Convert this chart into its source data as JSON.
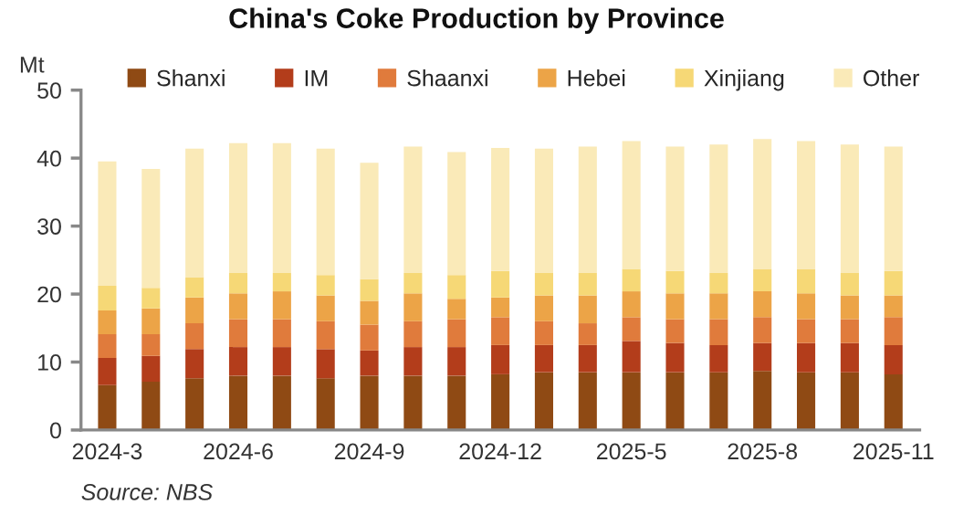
{
  "chart_data": {
    "type": "bar",
    "title": "China's Coke Production by Province",
    "ylabel": "Mt",
    "categories": [
      "2024-3",
      null,
      null,
      "2024-6",
      null,
      null,
      "2024-9",
      null,
      null,
      "2024-12",
      null,
      null,
      "2025-5",
      null,
      null,
      "2025-8",
      null,
      null,
      "2025-11"
    ],
    "stacked": true,
    "legend": "top",
    "grid": false,
    "ylim": [
      0,
      50
    ],
    "yticks": [
      0,
      10,
      20,
      30,
      40,
      50
    ],
    "series": [
      {
        "name": "Shanxi",
        "color": "#8f4a14",
        "values": [
          6.6,
          7.1,
          7.6,
          8.0,
          8.0,
          7.6,
          8.0,
          8.0,
          8.0,
          8.2,
          8.5,
          8.5,
          8.5,
          8.5,
          8.5,
          8.7,
          8.5,
          8.5,
          8.2
        ]
      },
      {
        "name": "IM",
        "color": "#b33d1b",
        "values": [
          4.0,
          3.8,
          4.3,
          4.2,
          4.2,
          4.3,
          3.7,
          4.2,
          4.2,
          4.3,
          4.0,
          4.0,
          4.6,
          4.3,
          4.0,
          4.1,
          4.3,
          4.3,
          4.3
        ]
      },
      {
        "name": "Shaanxi",
        "color": "#e07b3c",
        "values": [
          3.5,
          3.2,
          3.8,
          4.1,
          4.1,
          4.1,
          3.8,
          3.8,
          4.1,
          4.1,
          3.5,
          3.2,
          3.5,
          3.5,
          3.8,
          3.8,
          3.5,
          3.5,
          4.1
        ]
      },
      {
        "name": "Hebei",
        "color": "#eca447",
        "values": [
          3.5,
          3.8,
          3.8,
          3.8,
          4.1,
          3.8,
          3.5,
          4.1,
          3.0,
          2.9,
          3.8,
          4.1,
          3.8,
          3.8,
          3.8,
          3.8,
          3.8,
          3.5,
          3.2
        ]
      },
      {
        "name": "Xinjiang",
        "color": "#f6d876",
        "values": [
          3.6,
          3.0,
          3.0,
          3.0,
          2.7,
          3.0,
          3.2,
          3.0,
          3.5,
          3.9,
          3.3,
          3.3,
          3.3,
          3.3,
          3.0,
          3.3,
          3.6,
          3.3,
          3.6
        ]
      },
      {
        "name": "Other",
        "color": "#faeab8",
        "values": [
          18.3,
          17.5,
          18.9,
          19.1,
          19.1,
          18.6,
          17.1,
          18.6,
          18.1,
          18.1,
          18.3,
          18.6,
          18.8,
          18.3,
          18.9,
          19.1,
          18.8,
          18.9,
          18.3
        ]
      }
    ],
    "annotations": [
      "Source: NBS"
    ]
  }
}
